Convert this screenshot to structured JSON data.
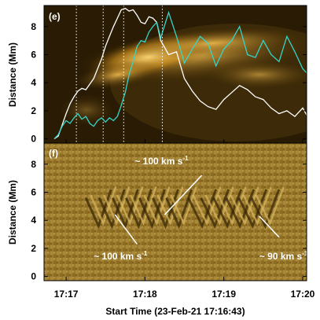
{
  "chart_data": [
    {
      "panel": "(e)",
      "type": "line",
      "background": "time-distance intensity map",
      "ylabel": "Distance (Mm)",
      "ylim": [
        -0.3,
        9.5
      ],
      "yticks": [
        0,
        2,
        4,
        6,
        8
      ],
      "ytick_labels": [
        "0",
        "2",
        "4",
        "6",
        "8"
      ],
      "xlim_minutes": [
        16.72,
        20.05
      ],
      "vertical_dotted_lines_minutes": [
        17.13,
        17.47,
        17.73,
        18.22
      ],
      "colors": {
        "white": "#ffffff",
        "cyan": "#33d6c8",
        "background": "#2a1c04",
        "glow": "#f0b030"
      },
      "series": [
        {
          "color": "white",
          "x": [
            16.85,
            16.9,
            16.95,
            17.0,
            17.05,
            17.1,
            17.15,
            17.2,
            17.25,
            17.3,
            17.35,
            17.4,
            17.45,
            17.5,
            17.55,
            17.6,
            17.65,
            17.7,
            17.75,
            17.8,
            17.85,
            17.9,
            17.95,
            18.0,
            18.05,
            18.1,
            18.15,
            18.2,
            18.3,
            18.4,
            18.5,
            18.6,
            18.7,
            18.8,
            18.9,
            19.0,
            19.1,
            19.2,
            19.3,
            19.4,
            19.5,
            19.6,
            19.7,
            19.8,
            19.9,
            20.0,
            20.05
          ],
          "y": [
            0,
            0.2,
            1.0,
            1.8,
            2.5,
            3.0,
            3.4,
            3.6,
            3.5,
            3.9,
            4.3,
            5.0,
            5.7,
            6.6,
            7.3,
            8.0,
            8.6,
            9.2,
            9.3,
            9.1,
            9.2,
            8.8,
            8.3,
            8.2,
            8.7,
            8.6,
            8.3,
            7.0,
            6.0,
            6.2,
            4.3,
            3.4,
            2.7,
            2.3,
            2.1,
            2.8,
            3.3,
            3.8,
            3.5,
            3.0,
            2.8,
            2.2,
            1.8,
            2.0,
            1.6,
            2.2,
            1.7
          ]
        },
        {
          "color": "cyan",
          "x": [
            16.85,
            16.9,
            16.95,
            17.0,
            17.05,
            17.1,
            17.15,
            17.2,
            17.25,
            17.3,
            17.35,
            17.4,
            17.45,
            17.5,
            17.55,
            17.6,
            17.65,
            17.7,
            17.75,
            17.8,
            17.85,
            17.9,
            17.95,
            18.0,
            18.05,
            18.1,
            18.15,
            18.2,
            18.3,
            18.4,
            18.5,
            18.6,
            18.7,
            18.8,
            18.9,
            19.0,
            19.1,
            19.2,
            19.3,
            19.4,
            19.5,
            19.6,
            19.7,
            19.8,
            19.9,
            20.0,
            20.05
          ],
          "y": [
            0,
            0.3,
            0.9,
            1.3,
            1.1,
            1.5,
            1.8,
            1.4,
            1.6,
            1.1,
            0.9,
            1.3,
            1.5,
            1.2,
            1.5,
            1.3,
            1.6,
            2.4,
            3.3,
            4.6,
            5.5,
            6.6,
            7.0,
            6.9,
            7.6,
            8.0,
            8.3,
            7.2,
            9.0,
            7.3,
            5.4,
            6.4,
            7.3,
            6.8,
            5.2,
            6.4,
            7.0,
            8.0,
            6.0,
            5.8,
            7.0,
            6.0,
            5.5,
            7.3,
            6.2,
            5.0,
            4.7
          ]
        }
      ]
    },
    {
      "panel": "(f)",
      "type": "line",
      "background": "running-difference time-distance map",
      "ylabel": "Distance (Mm)",
      "xlabel": "Start Time (23-Feb-21 17:16:43)",
      "ylim": [
        -0.3,
        9.5
      ],
      "yticks": [
        0,
        2,
        4,
        6,
        8
      ],
      "ytick_labels": [
        "0",
        "2",
        "4",
        "6",
        "8"
      ],
      "xlim_minutes": [
        16.72,
        20.05
      ],
      "xticks_minutes": [
        17,
        18,
        19,
        20
      ],
      "xtick_labels": [
        "17:17",
        "17:18",
        "17:19",
        "17:20"
      ],
      "colors": {
        "background": "#9a7a2a",
        "light": "#d8b860",
        "dark": "#3a2a08",
        "line": "#ffffff"
      },
      "speed_lines": [
        {
          "x": [
            17.62,
            17.9
          ],
          "y": [
            4.4,
            2.3
          ],
          "label": "~ 100 km s",
          "superscript": "-1"
        },
        {
          "x": [
            18.25,
            18.72
          ],
          "y": [
            4.4,
            7.2
          ],
          "label": "~ 100 km s",
          "superscript": "-1"
        },
        {
          "x": [
            19.45,
            19.7
          ],
          "y": [
            4.3,
            2.8
          ],
          "label": "~ 90 km s",
          "superscript": "-1"
        }
      ]
    }
  ]
}
